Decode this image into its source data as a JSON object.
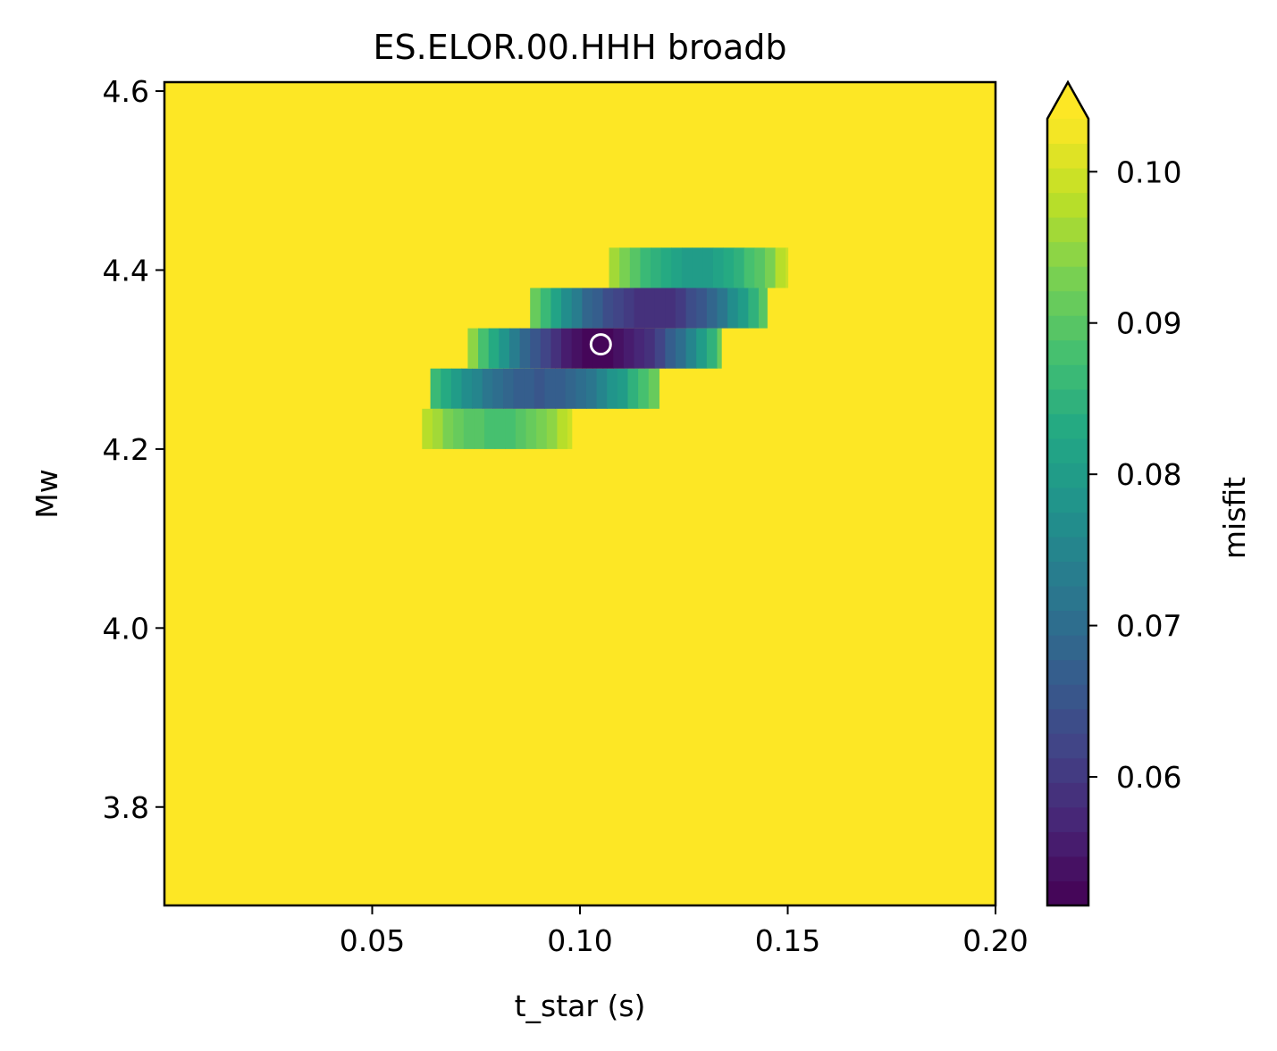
{
  "chart_data": {
    "type": "heatmap",
    "title": "ES.ELOR.00.HHH broadb",
    "xlabel": "t_star (s)",
    "ylabel": "Mw",
    "colorbar_label": "misfit",
    "colormap": "viridis",
    "colorbar_extend": "max",
    "xlim": [
      0.0,
      0.2
    ],
    "ylim": [
      3.69,
      4.61
    ],
    "x_ticks": [
      0.05,
      0.1,
      0.15,
      0.2
    ],
    "x_tick_labels": [
      "0.05",
      "0.10",
      "0.15",
      "0.20"
    ],
    "y_ticks": [
      3.8,
      4.0,
      4.2,
      4.4,
      4.6
    ],
    "y_tick_labels": [
      "3.8",
      "4.0",
      "4.2",
      "4.4",
      "4.6"
    ],
    "colorbar_range": [
      0.0515,
      0.1035
    ],
    "colorbar_ticks": [
      0.06,
      0.07,
      0.08,
      0.09,
      0.1
    ],
    "colorbar_tick_labels": [
      "0.06",
      "0.07",
      "0.08",
      "0.09",
      "0.10"
    ],
    "background_value": 0.105,
    "bands": [
      {
        "mw_range": [
          4.2,
          4.245
        ],
        "t_range": [
          0.062,
          0.098
        ],
        "t_center": 0.08,
        "t_halfwidth": 0.018,
        "min_misfit": 0.088,
        "edge_misfit": 0.1
      },
      {
        "mw_range": [
          4.245,
          4.29
        ],
        "t_range": [
          0.064,
          0.119
        ],
        "t_center": 0.09,
        "t_halfwidth": 0.029,
        "min_misfit": 0.066,
        "edge_misfit": 0.094
      },
      {
        "mw_range": [
          4.29,
          4.335
        ],
        "t_range": [
          0.073,
          0.134
        ],
        "t_center": 0.105,
        "t_halfwidth": 0.032,
        "min_misfit": 0.052,
        "edge_misfit": 0.098
      },
      {
        "mw_range": [
          4.335,
          4.38
        ],
        "t_range": [
          0.088,
          0.145
        ],
        "t_center": 0.117,
        "t_halfwidth": 0.029,
        "min_misfit": 0.058,
        "edge_misfit": 0.094
      },
      {
        "mw_range": [
          4.38,
          4.425
        ],
        "t_range": [
          0.107,
          0.15
        ],
        "t_center": 0.128,
        "t_halfwidth": 0.022,
        "min_misfit": 0.08,
        "edge_misfit": 0.1
      }
    ],
    "best_fit": {
      "t_star": 0.105,
      "Mw": 4.317
    }
  }
}
